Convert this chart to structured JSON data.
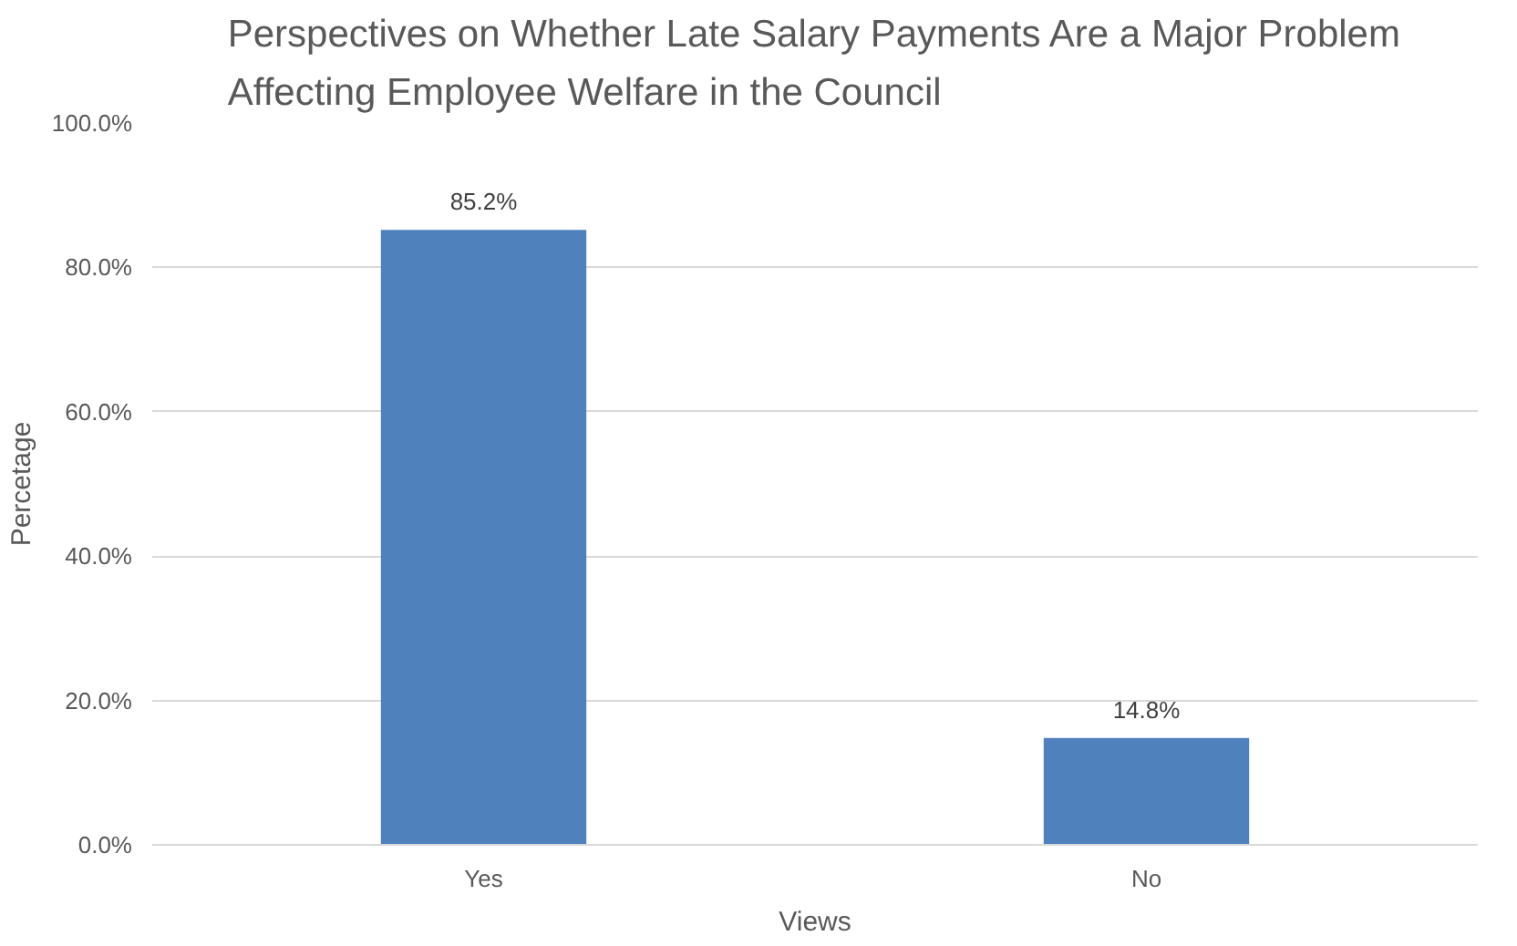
{
  "chart_data": {
    "type": "bar",
    "title": "Perspectives on Whether Late Salary Payments Are a Major Problem\nAffecting Employee Welfare in the Council",
    "categories": [
      "Yes",
      "No"
    ],
    "values": [
      85.2,
      14.8
    ],
    "value_labels": [
      "85.2%",
      "14.8%"
    ],
    "color": "#4f81bd",
    "xlabel": "Views",
    "ylabel": "Percetage",
    "ylim": [
      0,
      100
    ],
    "yticks": [
      {
        "value": 0,
        "label": "0.0%"
      },
      {
        "value": 20,
        "label": "20.0%"
      },
      {
        "value": 40,
        "label": "40.0%"
      },
      {
        "value": 60,
        "label": "60.0%"
      },
      {
        "value": 80,
        "label": "80.0%"
      },
      {
        "value": 100,
        "label": "100.0%"
      }
    ],
    "grid": "y"
  }
}
